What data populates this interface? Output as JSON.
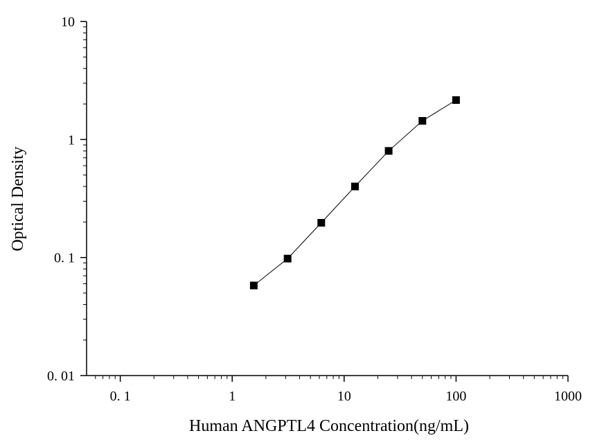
{
  "chart_data": {
    "type": "line",
    "title": "",
    "xlabel": "Human ANGPTL4 Concentration(ng/mL)",
    "ylabel": "Optical Density",
    "x_scale": "log",
    "y_scale": "log",
    "xlim": [
      0.05,
      1000
    ],
    "ylim": [
      0.01,
      10
    ],
    "grid": false,
    "legend": "none",
    "x_ticks": [
      {
        "value": 0.1,
        "label": "0. 1"
      },
      {
        "value": 1,
        "label": "1"
      },
      {
        "value": 10,
        "label": "10"
      },
      {
        "value": 100,
        "label": "100"
      },
      {
        "value": 1000,
        "label": "1000"
      }
    ],
    "y_ticks": [
      {
        "value": 0.01,
        "label": "0. 01"
      },
      {
        "value": 0.1,
        "label": "0. 1"
      },
      {
        "value": 1,
        "label": "1"
      },
      {
        "value": 10,
        "label": "10"
      }
    ],
    "series": [
      {
        "marker": "square",
        "color": "#000000",
        "x": [
          1.56,
          3.125,
          6.25,
          12.5,
          25,
          50,
          100
        ],
        "y": [
          0.058,
          0.098,
          0.197,
          0.4,
          0.8,
          1.44,
          2.16
        ]
      }
    ]
  }
}
